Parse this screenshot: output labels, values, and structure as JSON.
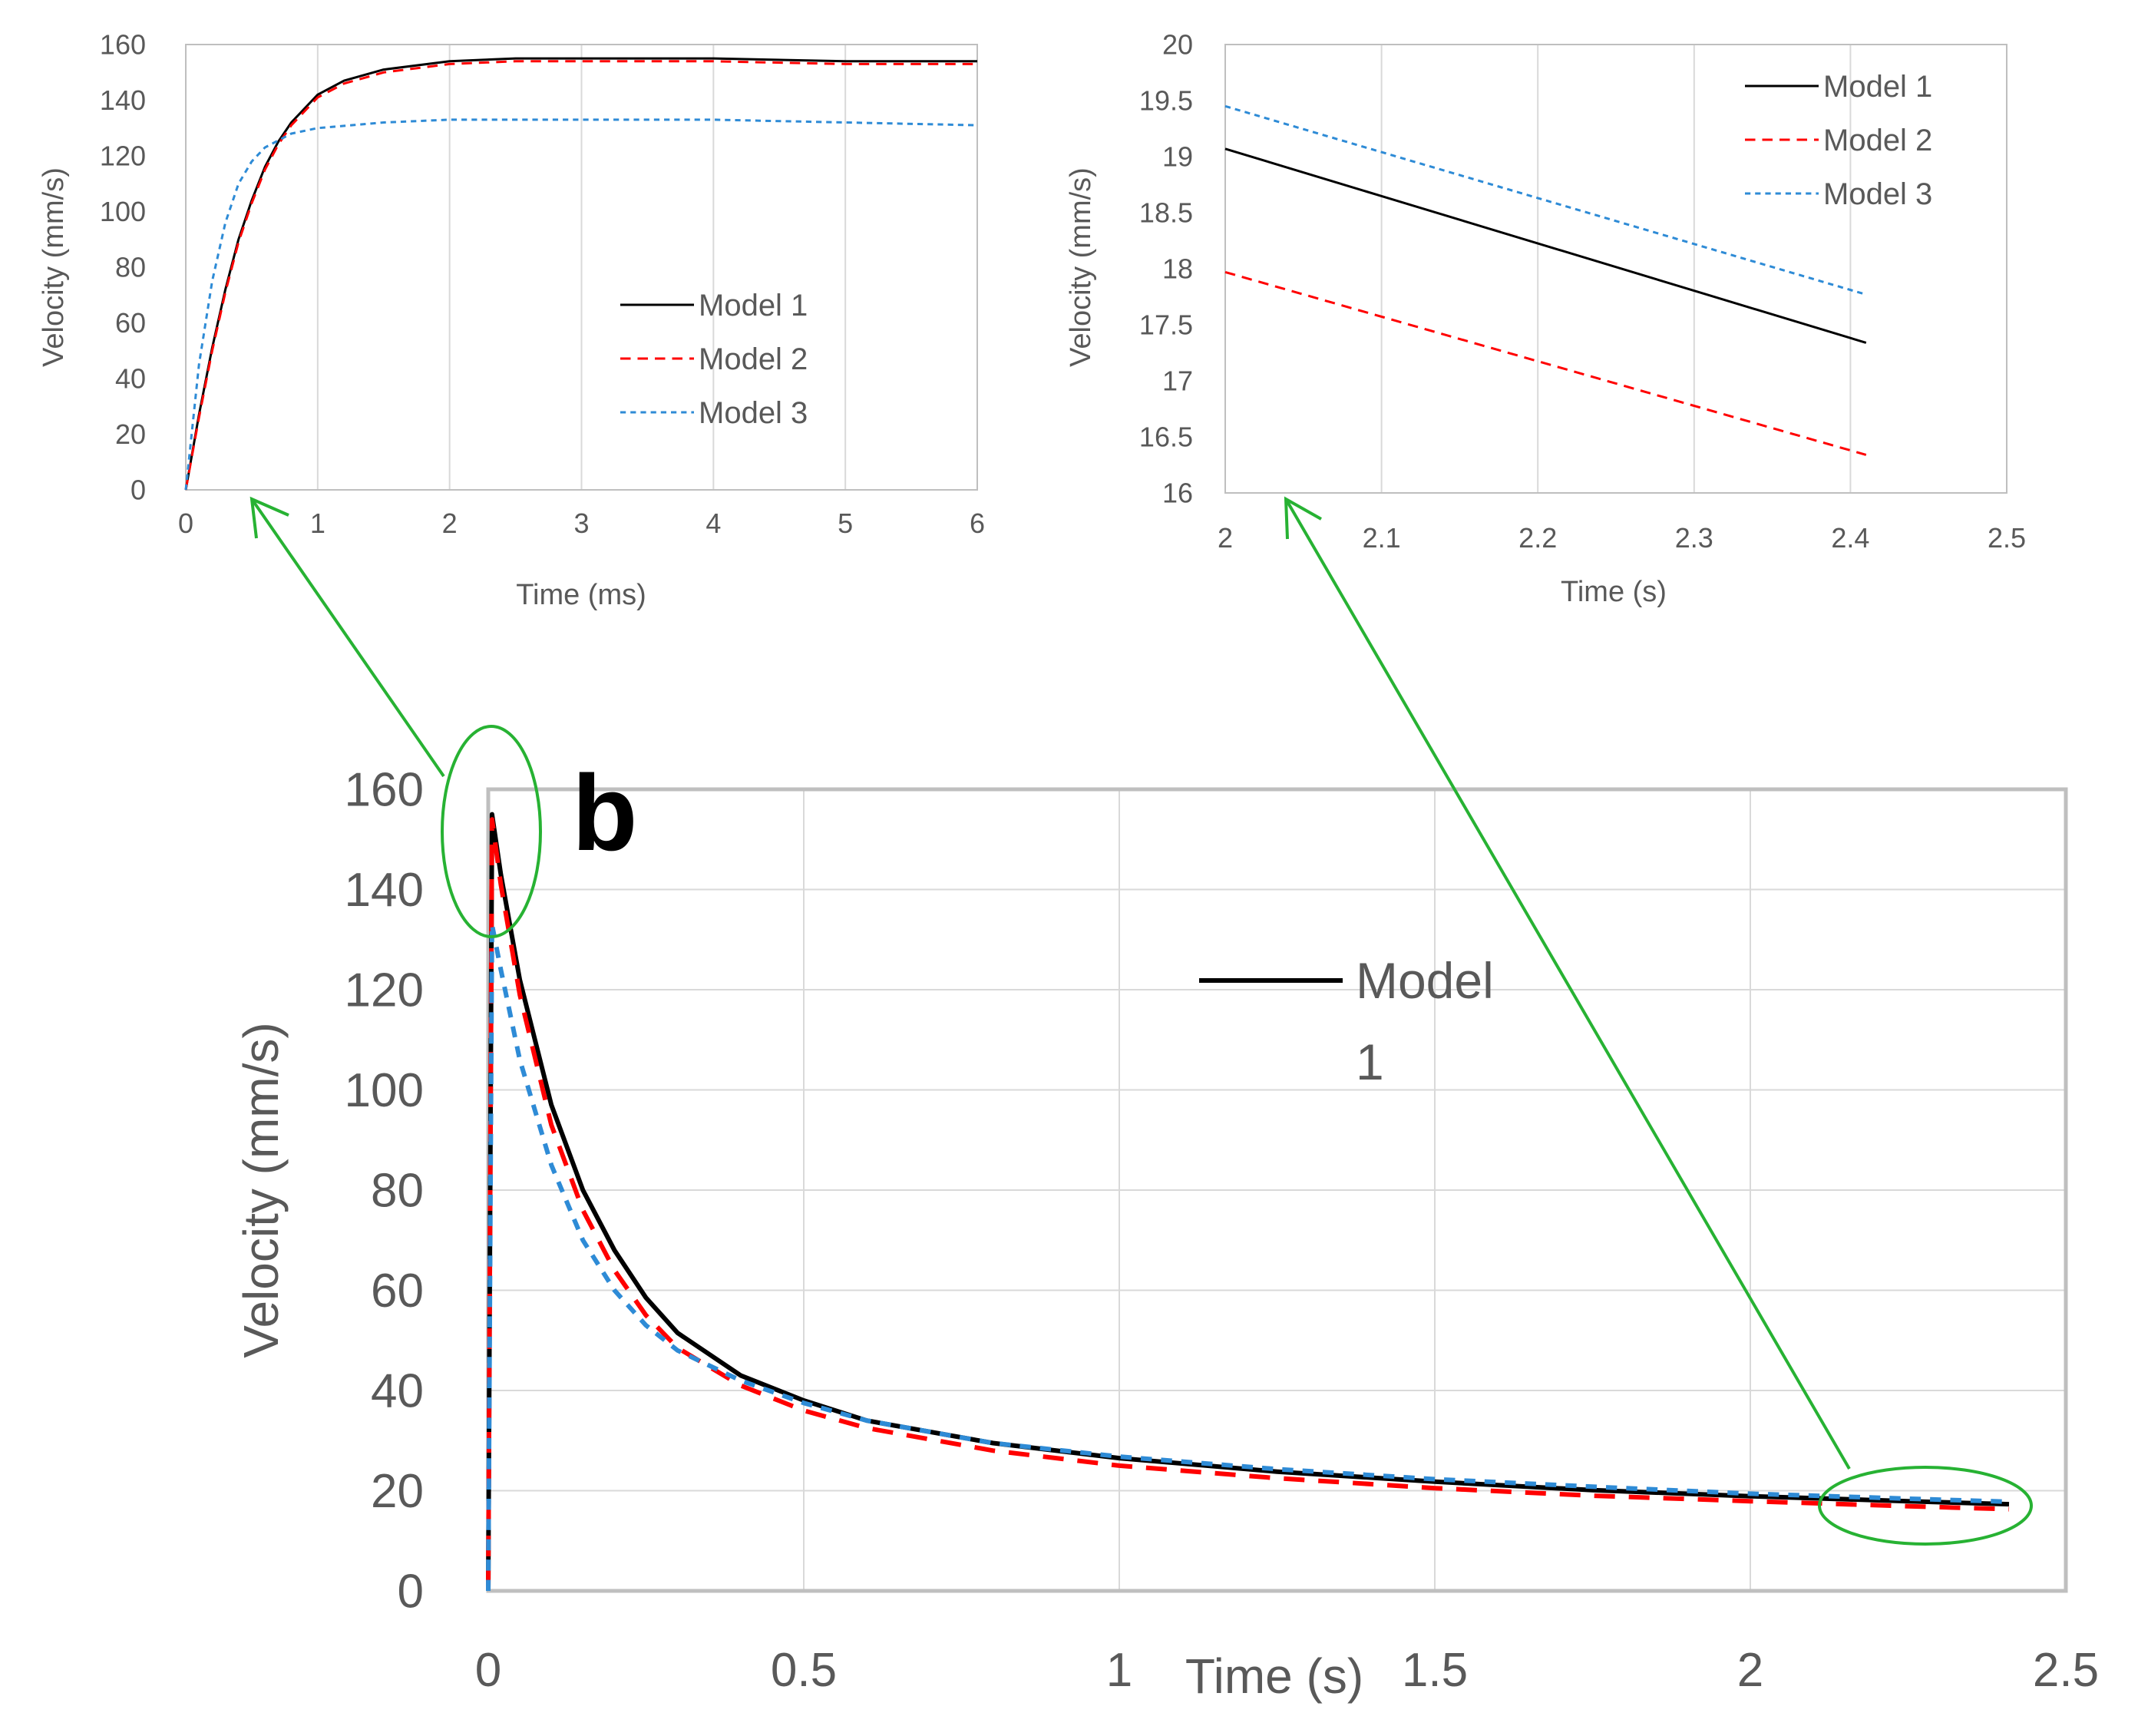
{
  "colors": {
    "model1": "#000000",
    "model2": "#ff0000",
    "model3": "#2e8bd6",
    "callout": "#27b233",
    "axis": "#bfbfbf",
    "grid": "#d9d9d9",
    "text": "#595959"
  },
  "chart_data": [
    {
      "id": "inset-left",
      "type": "line",
      "title": "",
      "xlabel": "Time (ms)",
      "ylabel": "Velocity (mm/s)",
      "xlim": [
        0,
        6
      ],
      "ylim": [
        0,
        160
      ],
      "xticks": [
        "0",
        "1",
        "2",
        "3",
        "4",
        "5",
        "6"
      ],
      "yticks": [
        "0",
        "20",
        "40",
        "60",
        "80",
        "100",
        "120",
        "140",
        "160"
      ],
      "grid": "vertical",
      "legend": "center-right",
      "series": [
        {
          "name": "Model 1",
          "style": "solid",
          "x": [
            0,
            0.1,
            0.2,
            0.3,
            0.4,
            0.5,
            0.6,
            0.7,
            0.8,
            1,
            1.2,
            1.5,
            2,
            2.5,
            3,
            4,
            5,
            6
          ],
          "y": [
            0,
            27,
            51,
            72,
            90,
            104,
            116,
            125,
            132,
            142,
            147,
            151,
            154,
            155,
            155,
            155,
            154,
            154
          ]
        },
        {
          "name": "Model 2",
          "style": "dashed",
          "x": [
            0,
            0.1,
            0.2,
            0.3,
            0.4,
            0.5,
            0.6,
            0.7,
            0.8,
            1,
            1.2,
            1.5,
            2,
            2.5,
            3,
            4,
            5,
            6
          ],
          "y": [
            0,
            26,
            50,
            71,
            89,
            103,
            115,
            124,
            131,
            141,
            146,
            150,
            153,
            154,
            154,
            154,
            153,
            153
          ]
        },
        {
          "name": "Model 3",
          "style": "dotted",
          "x": [
            0,
            0.1,
            0.2,
            0.3,
            0.4,
            0.5,
            0.6,
            0.8,
            1,
            1.5,
            2,
            3,
            4,
            5,
            6
          ],
          "y": [
            0,
            45,
            75,
            96,
            110,
            118,
            123,
            128,
            130,
            132,
            133,
            133,
            133,
            132,
            131
          ]
        }
      ]
    },
    {
      "id": "inset-right",
      "type": "line",
      "title": "",
      "xlabel": "Time (s)",
      "ylabel": "Velocity (mm/s)",
      "xlim": [
        2,
        2.5
      ],
      "ylim": [
        16,
        20
      ],
      "xticks": [
        "2",
        "2.1",
        "2.2",
        "2.3",
        "2.4",
        "2.5"
      ],
      "yticks": [
        "16",
        "16.5",
        "17",
        "17.5",
        "18",
        "18.5",
        "19",
        "19.5",
        "20"
      ],
      "grid": "vertical",
      "legend": "top-right",
      "series": [
        {
          "name": "Model 1",
          "style": "solid",
          "x": [
            2,
            2.41
          ],
          "y": [
            19.07,
            17.34
          ]
        },
        {
          "name": "Model 2",
          "style": "dashed",
          "x": [
            2,
            2.41
          ],
          "y": [
            17.97,
            16.34
          ]
        },
        {
          "name": "Model 3",
          "style": "dotted",
          "x": [
            2,
            2.41
          ],
          "y": [
            19.45,
            17.77
          ]
        }
      ]
    },
    {
      "id": "main-b",
      "type": "line",
      "title": "",
      "panel_label": "b",
      "xlabel": "Time (s)",
      "ylabel": "Velocity (mm/s)",
      "xlim": [
        0,
        2.5
      ],
      "ylim": [
        0,
        160
      ],
      "xticks": [
        "0",
        "0.5",
        "1",
        "1.5",
        "2",
        "2.5"
      ],
      "yticks": [
        "0",
        "20",
        "40",
        "60",
        "80",
        "100",
        "120",
        "140",
        "160"
      ],
      "grid": "both",
      "legend": "center",
      "legend_entry": {
        "line1": "Model",
        "line2": "1"
      },
      "series": [
        {
          "name": "Model 1",
          "style": "solid",
          "x": [
            0,
            0.006,
            0.02,
            0.05,
            0.1,
            0.15,
            0.2,
            0.25,
            0.3,
            0.4,
            0.5,
            0.6,
            0.8,
            1,
            1.25,
            1.5,
            1.75,
            2,
            2.25,
            2.41
          ],
          "y": [
            0,
            155,
            143,
            122,
            97,
            80,
            68,
            58.5,
            51.5,
            43,
            38,
            34,
            29.5,
            26.5,
            23.8,
            21.8,
            20.1,
            18.9,
            17.9,
            17.3
          ]
        },
        {
          "name": "Model 2",
          "style": "dashed",
          "x": [
            0,
            0.006,
            0.02,
            0.05,
            0.1,
            0.15,
            0.2,
            0.25,
            0.3,
            0.4,
            0.5,
            0.6,
            0.8,
            1,
            1.25,
            1.5,
            1.75,
            2,
            2.25,
            2.41
          ],
          "y": [
            0,
            154,
            141,
            119,
            93,
            76,
            64,
            55,
            48.5,
            41,
            36,
            32.5,
            28,
            25,
            22.5,
            20.5,
            19,
            17.9,
            16.9,
            16.3
          ]
        },
        {
          "name": "Model 3",
          "style": "dotted",
          "x": [
            0,
            0.006,
            0.02,
            0.05,
            0.1,
            0.15,
            0.2,
            0.25,
            0.3,
            0.4,
            0.5,
            0.6,
            0.8,
            1,
            1.25,
            1.5,
            1.75,
            2,
            2.25,
            2.41
          ],
          "y": [
            0,
            133,
            124,
            106,
            85,
            70,
            60,
            53,
            48,
            42,
            37.5,
            34,
            29.5,
            26.8,
            24.3,
            22.3,
            20.8,
            19.4,
            18.4,
            17.8
          ]
        }
      ]
    }
  ]
}
